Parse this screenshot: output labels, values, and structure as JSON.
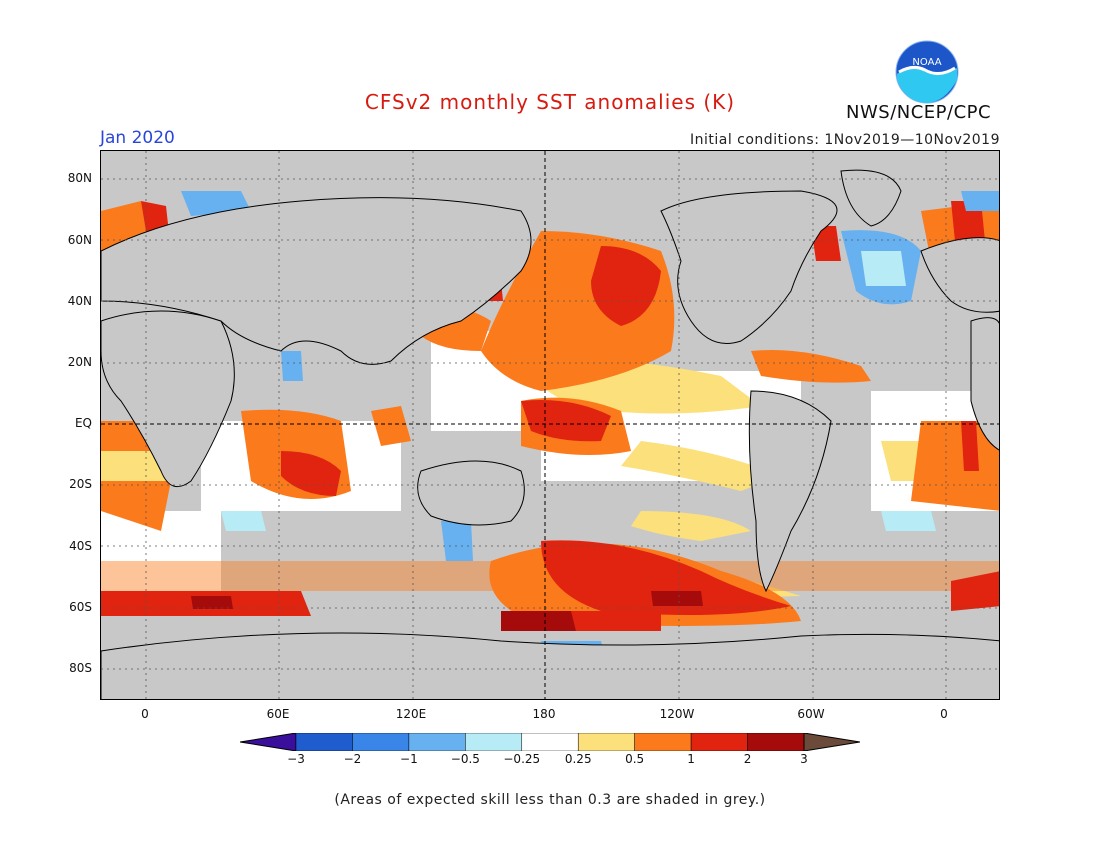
{
  "title": "CFSv2 monthly SST anomalies (K)",
  "valid_month": "Jan 2020",
  "initial_conditions": "Initial conditions: 1Nov2019—10Nov2019",
  "agency": "NWS/NCEP/CPC",
  "logo_text": "NOAA",
  "colors": {
    "title": "#d81b10",
    "date": "#2a46d8",
    "land": "#c8c8c8",
    "ocean_neutral": "#ffffff"
  },
  "latitude_labels": [
    "80N",
    "60N",
    "40N",
    "20N",
    "EQ",
    "20S",
    "40S",
    "60S",
    "80S"
  ],
  "longitude_labels": [
    "0",
    "60E",
    "120E",
    "180",
    "120W",
    "60W",
    "0"
  ],
  "colorbar": {
    "labels": [
      "−3",
      "−2",
      "−1",
      "−0.5",
      "−0.25",
      "0.25",
      "0.5",
      "1",
      "2",
      "3"
    ],
    "colors": [
      "#3a0f9b",
      "#1f5dcf",
      "#3a86e8",
      "#67b1f0",
      "#b7ecf7",
      "#ffffff",
      "#fbe07c",
      "#fb7a1c",
      "#e0240f",
      "#a50b0b",
      "#6b4a3a"
    ]
  },
  "note": "(Areas of expected skill less than 0.3 are shaded in grey.)"
}
